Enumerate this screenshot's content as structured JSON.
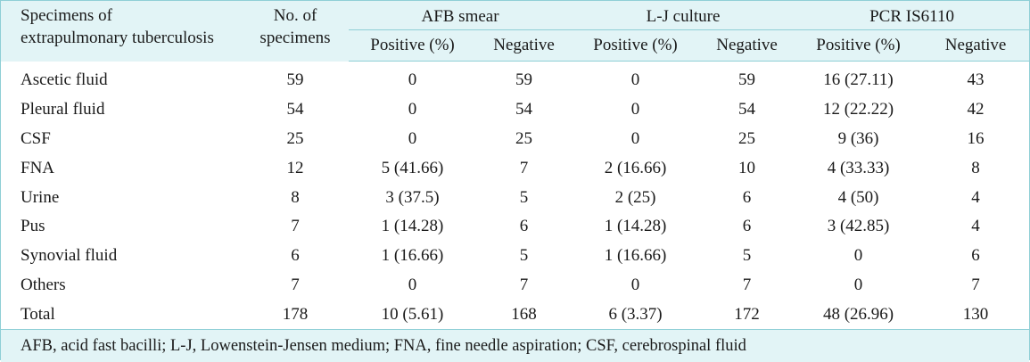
{
  "table": {
    "header": {
      "specimen_label_line1": "Specimens of",
      "specimen_label_line2": "extrapulmonary tuberculosis",
      "count_label_line1": "No. of",
      "count_label_line2": "specimens",
      "groups": [
        "AFB smear",
        "L-J culture",
        "PCR IS6110"
      ],
      "sub_positive": "Positive (%)",
      "sub_negative": "Negative"
    },
    "rows": [
      {
        "specimen": "Ascetic fluid",
        "count": "59",
        "afb_pos": "0",
        "afb_neg": "59",
        "lj_pos": "0",
        "lj_neg": "59",
        "pcr_pos": "16 (27.11)",
        "pcr_neg": "43"
      },
      {
        "specimen": "Pleural fluid",
        "count": "54",
        "afb_pos": "0",
        "afb_neg": "54",
        "lj_pos": "0",
        "lj_neg": "54",
        "pcr_pos": "12 (22.22)",
        "pcr_neg": "42"
      },
      {
        "specimen": "CSF",
        "count": "25",
        "afb_pos": "0",
        "afb_neg": "25",
        "lj_pos": "0",
        "lj_neg": "25",
        "pcr_pos": "9 (36)",
        "pcr_neg": "16"
      },
      {
        "specimen": "FNA",
        "count": "12",
        "afb_pos": "5 (41.66)",
        "afb_neg": "7",
        "lj_pos": "2 (16.66)",
        "lj_neg": "10",
        "pcr_pos": "4 (33.33)",
        "pcr_neg": "8"
      },
      {
        "specimen": "Urine",
        "count": "8",
        "afb_pos": "3 (37.5)",
        "afb_neg": "5",
        "lj_pos": "2 (25)",
        "lj_neg": "6",
        "pcr_pos": "4 (50)",
        "pcr_neg": "4"
      },
      {
        "specimen": "Pus",
        "count": "7",
        "afb_pos": "1 (14.28)",
        "afb_neg": "6",
        "lj_pos": "1 (14.28)",
        "lj_neg": "6",
        "pcr_pos": "3 (42.85)",
        "pcr_neg": "4"
      },
      {
        "specimen": "Synovial fluid",
        "count": "6",
        "afb_pos": "1 (16.66)",
        "afb_neg": "5",
        "lj_pos": "1 (16.66)",
        "lj_neg": "5",
        "pcr_pos": "0",
        "pcr_neg": "6"
      },
      {
        "specimen": "Others",
        "count": "7",
        "afb_pos": "0",
        "afb_neg": "7",
        "lj_pos": "0",
        "lj_neg": "7",
        "pcr_pos": "0",
        "pcr_neg": "7"
      },
      {
        "specimen": "Total",
        "count": "178",
        "afb_pos": "10 (5.61)",
        "afb_neg": "168",
        "lj_pos": "6 (3.37)",
        "lj_neg": "172",
        "pcr_pos": "48 (26.96)",
        "pcr_neg": "130"
      }
    ],
    "footnote": "AFB, acid fast bacilli; L-J, Lowenstein-Jensen medium; FNA, fine needle aspiration; CSF, cerebrospinal fluid",
    "colors": {
      "header_bg": "#e2f4f6",
      "rule": "#8fcfd6",
      "body_bg": "#ffffff"
    }
  }
}
